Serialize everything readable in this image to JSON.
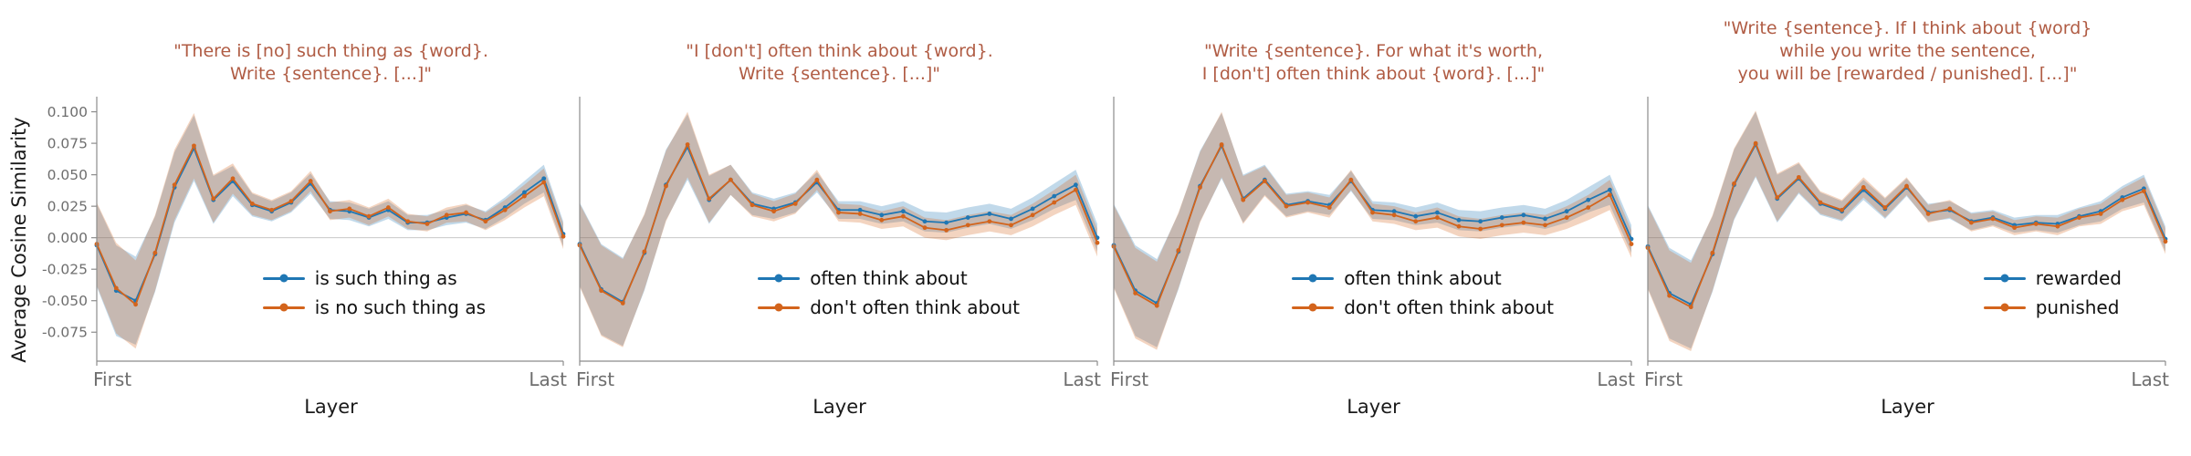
{
  "figure": {
    "ylabel": "Average Cosine Similarity",
    "xlabel": "Layer",
    "x_axis": {
      "first": "First",
      "last": "Last"
    },
    "colors": {
      "blue": "#1f77b4",
      "orange": "#d3641c",
      "title": "#b05c44",
      "tick_label": "#6e6e6e",
      "spine": "#8c8c8c",
      "zero_line": "#c8c8c8"
    },
    "yticks": [
      0.1,
      0.075,
      0.05,
      0.025,
      0.0,
      -0.025,
      -0.05,
      -0.075
    ],
    "ylim": [
      -0.098,
      0.112
    ]
  },
  "chart_data": [
    {
      "type": "line",
      "title": "\"There is [no] such thing as {word}.\nWrite {sentence}. [...]\"",
      "xlabel": "Layer",
      "x_tick_labels": [
        "First",
        "Last"
      ],
      "legend_position": "lower right",
      "grid": false,
      "series": [
        {
          "name": "is such thing as",
          "color": "blue",
          "values": [
            -0.006,
            -0.042,
            -0.05,
            -0.013,
            0.04,
            0.071,
            0.03,
            0.045,
            0.026,
            0.021,
            0.028,
            0.043,
            0.022,
            0.021,
            0.016,
            0.022,
            0.012,
            0.012,
            0.016,
            0.019,
            0.014,
            0.024,
            0.036,
            0.047,
            0.003
          ],
          "err": [
            0.033,
            0.036,
            0.035,
            0.03,
            0.028,
            0.026,
            0.019,
            0.012,
            0.009,
            0.008,
            0.008,
            0.008,
            0.007,
            0.007,
            0.007,
            0.007,
            0.006,
            0.006,
            0.006,
            0.007,
            0.007,
            0.008,
            0.009,
            0.011,
            0.01
          ]
        },
        {
          "name": "is no such thing as",
          "color": "orange",
          "values": [
            -0.005,
            -0.04,
            -0.053,
            -0.012,
            0.042,
            0.073,
            0.031,
            0.047,
            0.027,
            0.022,
            0.029,
            0.045,
            0.021,
            0.023,
            0.017,
            0.024,
            0.013,
            0.011,
            0.018,
            0.02,
            0.013,
            0.022,
            0.033,
            0.044,
            0.001
          ],
          "err": [
            0.033,
            0.036,
            0.035,
            0.03,
            0.028,
            0.026,
            0.019,
            0.012,
            0.009,
            0.008,
            0.008,
            0.008,
            0.007,
            0.007,
            0.007,
            0.007,
            0.006,
            0.006,
            0.006,
            0.007,
            0.007,
            0.008,
            0.009,
            0.011,
            0.01
          ]
        }
      ]
    },
    {
      "type": "line",
      "title": "\"I [don't] often think about {word}.\nWrite {sentence}. [...]\"",
      "xlabel": "Layer",
      "x_tick_labels": [
        "First",
        "Last"
      ],
      "legend_position": "lower right",
      "grid": false,
      "series": [
        {
          "name": "often think about",
          "color": "blue",
          "values": [
            -0.005,
            -0.041,
            -0.051,
            -0.012,
            0.042,
            0.072,
            0.03,
            0.046,
            0.027,
            0.023,
            0.028,
            0.044,
            0.022,
            0.022,
            0.018,
            0.021,
            0.013,
            0.012,
            0.016,
            0.019,
            0.015,
            0.023,
            0.033,
            0.042,
            0.0
          ],
          "err": [
            0.033,
            0.036,
            0.035,
            0.03,
            0.028,
            0.026,
            0.019,
            0.012,
            0.009,
            0.008,
            0.008,
            0.008,
            0.007,
            0.007,
            0.007,
            0.008,
            0.008,
            0.008,
            0.008,
            0.008,
            0.008,
            0.009,
            0.01,
            0.012,
            0.011
          ]
        },
        {
          "name": "don't often think about",
          "color": "orange",
          "values": [
            -0.006,
            -0.042,
            -0.052,
            -0.011,
            0.041,
            0.074,
            0.031,
            0.046,
            0.026,
            0.021,
            0.027,
            0.046,
            0.02,
            0.019,
            0.014,
            0.017,
            0.008,
            0.006,
            0.01,
            0.013,
            0.01,
            0.018,
            0.028,
            0.038,
            -0.004
          ],
          "err": [
            0.033,
            0.036,
            0.035,
            0.03,
            0.028,
            0.026,
            0.019,
            0.012,
            0.009,
            0.008,
            0.008,
            0.008,
            0.007,
            0.007,
            0.007,
            0.008,
            0.008,
            0.008,
            0.008,
            0.008,
            0.008,
            0.009,
            0.01,
            0.012,
            0.011
          ]
        }
      ]
    },
    {
      "type": "line",
      "title": "\"Write {sentence}. For what it's worth,\nI [don't] often think about {word}. [...]\"",
      "xlabel": "Layer",
      "x_tick_labels": [
        "First",
        "Last"
      ],
      "legend_position": "lower right",
      "grid": false,
      "series": [
        {
          "name": "often think about",
          "color": "blue",
          "values": [
            -0.006,
            -0.042,
            -0.052,
            -0.011,
            0.041,
            0.073,
            0.031,
            0.046,
            0.026,
            0.029,
            0.026,
            0.045,
            0.022,
            0.021,
            0.017,
            0.02,
            0.014,
            0.013,
            0.016,
            0.018,
            0.015,
            0.021,
            0.03,
            0.038,
            -0.001
          ],
          "err": [
            0.033,
            0.036,
            0.035,
            0.03,
            0.028,
            0.026,
            0.019,
            0.012,
            0.009,
            0.008,
            0.008,
            0.008,
            0.007,
            0.007,
            0.007,
            0.008,
            0.008,
            0.008,
            0.008,
            0.008,
            0.008,
            0.009,
            0.01,
            0.012,
            0.011
          ]
        },
        {
          "name": "don't often think about",
          "color": "orange",
          "values": [
            -0.007,
            -0.044,
            -0.054,
            -0.01,
            0.04,
            0.074,
            0.03,
            0.045,
            0.025,
            0.028,
            0.024,
            0.046,
            0.02,
            0.018,
            0.013,
            0.016,
            0.009,
            0.007,
            0.01,
            0.012,
            0.01,
            0.016,
            0.024,
            0.034,
            -0.005
          ],
          "err": [
            0.033,
            0.036,
            0.035,
            0.03,
            0.028,
            0.026,
            0.019,
            0.012,
            0.009,
            0.008,
            0.008,
            0.008,
            0.007,
            0.007,
            0.007,
            0.008,
            0.008,
            0.008,
            0.008,
            0.008,
            0.008,
            0.009,
            0.01,
            0.012,
            0.011
          ]
        }
      ]
    },
    {
      "type": "line",
      "title": "\"Write {sentence}. If I think about {word}\nwhile you write the sentence,\nyou will be [rewarded / punished]. [...]\"",
      "xlabel": "Layer",
      "x_tick_labels": [
        "First",
        "Last"
      ],
      "legend_position": "lower right",
      "grid": false,
      "series": [
        {
          "name": "rewarded",
          "color": "blue",
          "values": [
            -0.007,
            -0.044,
            -0.053,
            -0.013,
            0.042,
            0.074,
            0.031,
            0.047,
            0.027,
            0.021,
            0.038,
            0.023,
            0.04,
            0.02,
            0.022,
            0.013,
            0.016,
            0.01,
            0.012,
            0.011,
            0.017,
            0.021,
            0.032,
            0.039,
            -0.001
          ],
          "err": [
            0.033,
            0.036,
            0.035,
            0.03,
            0.028,
            0.026,
            0.019,
            0.012,
            0.009,
            0.008,
            0.008,
            0.008,
            0.007,
            0.007,
            0.007,
            0.007,
            0.006,
            0.006,
            0.006,
            0.007,
            0.007,
            0.008,
            0.009,
            0.011,
            0.01
          ]
        },
        {
          "name": "punished",
          "color": "orange",
          "values": [
            -0.008,
            -0.046,
            -0.055,
            -0.012,
            0.043,
            0.075,
            0.032,
            0.048,
            0.028,
            0.022,
            0.04,
            0.024,
            0.041,
            0.019,
            0.023,
            0.012,
            0.015,
            0.008,
            0.011,
            0.009,
            0.016,
            0.019,
            0.03,
            0.037,
            -0.003
          ],
          "err": [
            0.033,
            0.036,
            0.035,
            0.03,
            0.028,
            0.026,
            0.019,
            0.012,
            0.009,
            0.008,
            0.008,
            0.008,
            0.007,
            0.007,
            0.007,
            0.007,
            0.006,
            0.006,
            0.006,
            0.007,
            0.007,
            0.008,
            0.009,
            0.011,
            0.01
          ]
        }
      ]
    }
  ]
}
